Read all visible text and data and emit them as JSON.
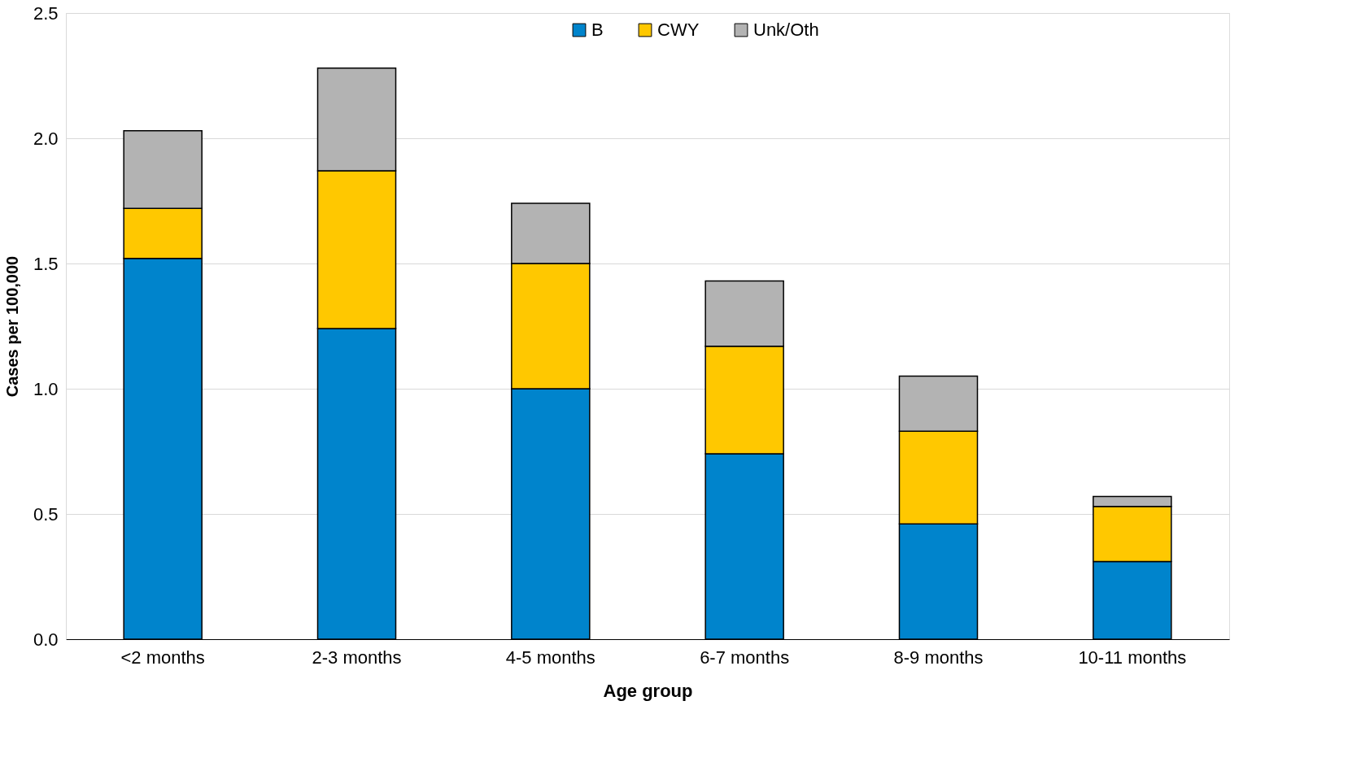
{
  "chart_data": {
    "type": "bar",
    "stacked": true,
    "xlabel": "Age group",
    "ylabel": "Cases per 100,000",
    "categories": [
      "<2 months",
      "2-3 months",
      "4-5 months",
      "6-7 months",
      "8-9 months",
      "10-11 months"
    ],
    "series": [
      {
        "name": "B",
        "color": "#0084cc",
        "values": [
          1.52,
          1.24,
          1.0,
          0.74,
          0.46,
          0.31
        ]
      },
      {
        "name": "CWY",
        "color": "#ffc800",
        "values": [
          0.2,
          0.63,
          0.5,
          0.43,
          0.37,
          0.22
        ]
      },
      {
        "name": "Unk/Oth",
        "color": "#b3b3b3",
        "values": [
          0.31,
          0.41,
          0.24,
          0.26,
          0.22,
          0.04
        ]
      }
    ],
    "ylim": [
      0,
      2.5
    ],
    "yticks": [
      {
        "value": 0,
        "label": "0.0"
      },
      {
        "value": 0.5,
        "label": "0.5"
      },
      {
        "value": 1,
        "label": "1.0"
      },
      {
        "value": 1.5,
        "label": "1.5"
      },
      {
        "value": 2,
        "label": "2.0"
      },
      {
        "value": 2.5,
        "label": "2.5"
      }
    ],
    "grid": "y",
    "legend": "top"
  }
}
